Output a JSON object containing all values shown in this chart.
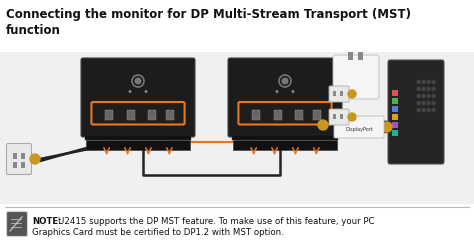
{
  "bg_color": "#ffffff",
  "diagram_bg": "#f0f0f0",
  "title_line1": "Connecting the monitor for DP Multi-Stream Transport (MST)",
  "title_line2": "function",
  "title_fontsize": 8.5,
  "title_fontweight": "bold",
  "note_bold": "NOTE:",
  "note_text": "U2415 supports the DP MST feature. To make use of this feature, your PC\nGraphics Card must be certified to DP1.2 with MST option.",
  "note_fontsize": 6.2,
  "monitor_color": "#1c1c1c",
  "monitor_edge": "#444444",
  "highlight_color": "#e87722",
  "highlight_fill": "#e8772208",
  "pc_dark": "#252525",
  "pc_edge": "#555555",
  "cable_color": "#222222",
  "connector_gold": "#c8981e",
  "outlet_color": "#e8e8e8",
  "outlet_edge": "#aaaaaa",
  "stand_color": "#111111",
  "logo_color": "#777777",
  "port_fill": "#666666",
  "grill_color": "#3a3a3a",
  "white_card": "#f5f5f5",
  "white_card_edge": "#bbbbbb"
}
